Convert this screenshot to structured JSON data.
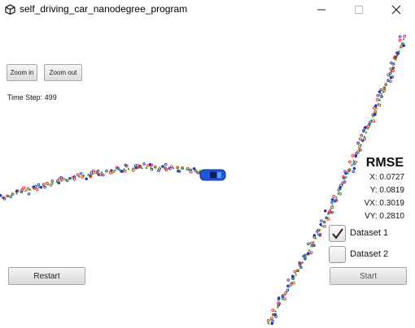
{
  "window": {
    "title": "self_driving_car_nanodegree_program",
    "icon": "unity-logo-icon",
    "controls": [
      "minimize-icon",
      "maximize-icon",
      "close-icon"
    ]
  },
  "toolbar": {
    "zoom_in_label": "Zoom in",
    "zoom_out_label": "Zoom out"
  },
  "status": {
    "time_step": "Time Step: 499"
  },
  "rmse": {
    "title": "RMSE",
    "x": "X: 0.0727",
    "y": "Y: 0.0819",
    "vx": "VX: 0.3019",
    "vy": "VY: 0.2810"
  },
  "datasets": [
    {
      "label": "Dataset 1",
      "checked": true
    },
    {
      "label": "Dataset 2",
      "checked": false
    }
  ],
  "buttons": {
    "restart_label": "Restart",
    "start_label": "Start"
  },
  "colors": {
    "car": "#2255dd",
    "estimate": "#22aa22",
    "lidar": "#dd2222",
    "radar": "#2233cc"
  }
}
